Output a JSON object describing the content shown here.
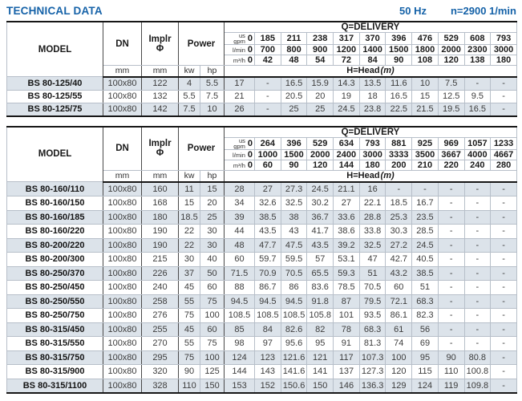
{
  "page": {
    "title": "TECHNICAL DATA",
    "frequency": "50 Hz",
    "speed": "n=2900 1/min",
    "accent_color": "#1562a8",
    "stripe_color": "#dce3ea"
  },
  "columns": {
    "model": "MODEL",
    "dn": "DN",
    "impeller": "Implr\nΦ",
    "power": "Power",
    "dn_unit": "mm",
    "impeller_unit": "mm",
    "power_units": [
      "kw",
      "hp"
    ],
    "delivery": "Q=DELIVERY",
    "head_label": "H=Head",
    "head_unit": "(m)",
    "flow_units": [
      "us\ngpm",
      "l/min",
      "m³/h"
    ],
    "zero": "0"
  },
  "tables": [
    {
      "name": "pump-table-80-125",
      "flow_rows": [
        [
          "185",
          "211",
          "238",
          "317",
          "370",
          "396",
          "476",
          "529",
          "608",
          "793"
        ],
        [
          "700",
          "800",
          "900",
          "1200",
          "1400",
          "1500",
          "1800",
          "2000",
          "2300",
          "3000"
        ],
        [
          "42",
          "48",
          "54",
          "72",
          "84",
          "90",
          "108",
          "120",
          "138",
          "180"
        ]
      ],
      "rows": [
        {
          "model": "BS 80-125/40",
          "dn": "100x80",
          "imp": "122",
          "kw": "4",
          "hp": "5.5",
          "head": [
            "17",
            "-",
            "16.5",
            "15.9",
            "14.3",
            "13.5",
            "11.6",
            "10",
            "7.5",
            "-",
            "-"
          ]
        },
        {
          "model": "BS 80-125/55",
          "dn": "100x80",
          "imp": "132",
          "kw": "5.5",
          "hp": "7.5",
          "head": [
            "21",
            "-",
            "20.5",
            "20",
            "19",
            "18",
            "16.5",
            "15",
            "12.5",
            "9.5",
            "-"
          ]
        },
        {
          "model": "BS 80-125/75",
          "dn": "100x80",
          "imp": "142",
          "kw": "7.5",
          "hp": "10",
          "head": [
            "26",
            "-",
            "25",
            "25",
            "24.5",
            "23.8",
            "22.5",
            "21.5",
            "19.5",
            "16.5",
            "-"
          ]
        }
      ]
    },
    {
      "name": "pump-table-80-160-315",
      "flow_rows": [
        [
          "264",
          "396",
          "529",
          "634",
          "793",
          "881",
          "925",
          "969",
          "1057",
          "1233"
        ],
        [
          "1000",
          "1500",
          "2000",
          "2400",
          "3000",
          "3333",
          "3500",
          "3667",
          "4000",
          "4667"
        ],
        [
          "60",
          "90",
          "120",
          "144",
          "180",
          "200",
          "210",
          "220",
          "240",
          "280"
        ]
      ],
      "rows": [
        {
          "model": "BS 80-160/110",
          "dn": "100x80",
          "imp": "160",
          "kw": "11",
          "hp": "15",
          "head": [
            "28",
            "27",
            "27.3",
            "24.5",
            "21.1",
            "16",
            "-",
            "-",
            "-",
            "-",
            "-"
          ]
        },
        {
          "model": "BS 80-160/150",
          "dn": "100x80",
          "imp": "168",
          "kw": "15",
          "hp": "20",
          "head": [
            "34",
            "32.6",
            "32.5",
            "30.2",
            "27",
            "22.1",
            "18.5",
            "16.7",
            "-",
            "-",
            "-"
          ]
        },
        {
          "model": "BS 80-160/185",
          "dn": "100x80",
          "imp": "180",
          "kw": "18.5",
          "hp": "25",
          "head": [
            "39",
            "38.5",
            "38",
            "36.7",
            "33.6",
            "28.8",
            "25.3",
            "23.5",
            "-",
            "-",
            "-"
          ]
        },
        {
          "model": "BS 80-160/220",
          "dn": "100x80",
          "imp": "190",
          "kw": "22",
          "hp": "30",
          "head": [
            "44",
            "43.5",
            "43",
            "41.7",
            "38.6",
            "33.8",
            "30.3",
            "28.5",
            "-",
            "-",
            "-"
          ]
        },
        {
          "model": "BS 80-200/220",
          "dn": "100x80",
          "imp": "190",
          "kw": "22",
          "hp": "30",
          "head": [
            "48",
            "47.7",
            "47.5",
            "43.5",
            "39.2",
            "32.5",
            "27.2",
            "24.5",
            "-",
            "-",
            "-"
          ]
        },
        {
          "model": "BS 80-200/300",
          "dn": "100x80",
          "imp": "215",
          "kw": "30",
          "hp": "40",
          "head": [
            "60",
            "59.7",
            "59.5",
            "57",
            "53.1",
            "47",
            "42.7",
            "40.5",
            "-",
            "-",
            "-"
          ]
        },
        {
          "model": "BS 80-250/370",
          "dn": "100x80",
          "imp": "226",
          "kw": "37",
          "hp": "50",
          "head": [
            "71.5",
            "70.9",
            "70.5",
            "65.5",
            "59.3",
            "51",
            "43.2",
            "38.5",
            "-",
            "-",
            "-"
          ]
        },
        {
          "model": "BS 80-250/450",
          "dn": "100x80",
          "imp": "240",
          "kw": "45",
          "hp": "60",
          "head": [
            "88",
            "86.7",
            "86",
            "83.6",
            "78.5",
            "70.5",
            "60",
            "51",
            "-",
            "-",
            "-"
          ]
        },
        {
          "model": "BS 80-250/550",
          "dn": "100x80",
          "imp": "258",
          "kw": "55",
          "hp": "75",
          "head": [
            "94.5",
            "94.5",
            "94.5",
            "91.8",
            "87",
            "79.5",
            "72.1",
            "68.3",
            "-",
            "-",
            "-"
          ]
        },
        {
          "model": "BS 80-250/750",
          "dn": "100x80",
          "imp": "276",
          "kw": "75",
          "hp": "100",
          "head": [
            "108.5",
            "108.5",
            "108.5",
            "105.8",
            "101",
            "93.5",
            "86.1",
            "82.3",
            "-",
            "-",
            "-"
          ]
        },
        {
          "model": "BS 80-315/450",
          "dn": "100x80",
          "imp": "255",
          "kw": "45",
          "hp": "60",
          "head": [
            "85",
            "84",
            "82.6",
            "82",
            "78",
            "68.3",
            "61",
            "56",
            "-",
            "-",
            "-"
          ]
        },
        {
          "model": "BS 80-315/550",
          "dn": "100x80",
          "imp": "270",
          "kw": "55",
          "hp": "75",
          "head": [
            "98",
            "97",
            "95.6",
            "95",
            "91",
            "81.3",
            "74",
            "69",
            "-",
            "-",
            "-"
          ]
        },
        {
          "model": "BS 80-315/750",
          "dn": "100x80",
          "imp": "295",
          "kw": "75",
          "hp": "100",
          "head": [
            "124",
            "123",
            "121.6",
            "121",
            "117",
            "107.3",
            "100",
            "95",
            "90",
            "80.8",
            "-"
          ]
        },
        {
          "model": "BS 80-315/900",
          "dn": "100x80",
          "imp": "320",
          "kw": "90",
          "hp": "125",
          "head": [
            "144",
            "143",
            "141.6",
            "141",
            "137",
            "127.3",
            "120",
            "115",
            "110",
            "100.8",
            "-"
          ]
        },
        {
          "model": "BS 80-315/1100",
          "dn": "100x80",
          "imp": "328",
          "kw": "110",
          "hp": "150",
          "head": [
            "153",
            "152",
            "150.6",
            "150",
            "146",
            "136.3",
            "129",
            "124",
            "119",
            "109.8",
            "-"
          ]
        }
      ]
    }
  ]
}
